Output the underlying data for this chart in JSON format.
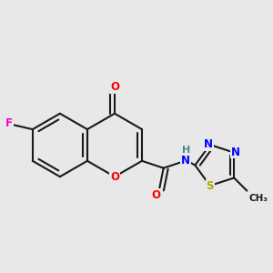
{
  "background_color": "#e8e8e8",
  "bond_color": "#1a1a1a",
  "bond_width": 1.5,
  "atom_colors": {
    "O": "#ff0000",
    "F": "#ff00cc",
    "N": "#0000ff",
    "S": "#aaaa00",
    "H": "#4a8a8a",
    "C": "#1a1a1a"
  }
}
